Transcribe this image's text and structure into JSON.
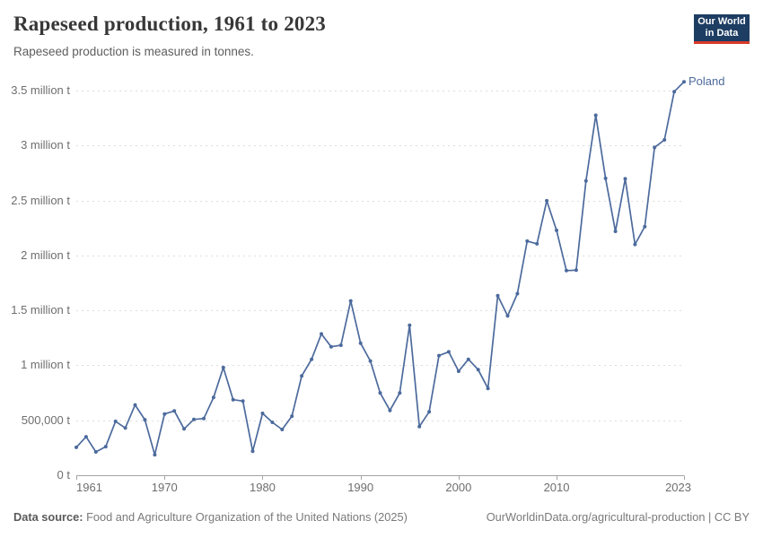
{
  "logo": {
    "line1": "Our World",
    "line2": "in Data"
  },
  "footer": {
    "source_label": "Data source:",
    "source_text": " Food and Agriculture Organization of the United Nations (2025)",
    "link_text": "OurWorldinData.org/agricultural-production | CC BY"
  },
  "colors": {
    "series_blue": "#4c6a9c",
    "gridline": "#dddddd",
    "axis": "#a3a3a3",
    "tick_text": "#6e6e6e",
    "logo_bg": "#1d3d63",
    "logo_bar": "#d93a2b"
  },
  "chart_data": {
    "type": "line",
    "title": "Rapeseed production, 1961 to 2023",
    "subtitle": "Rapeseed production is measured in tonnes.",
    "xlabel": "",
    "ylabel": "",
    "xlim": [
      1961,
      2023
    ],
    "ylim": [
      0,
      3500000
    ],
    "grid": "horizontal-dashed",
    "legend_position": "end-of-line-label",
    "x_ticks": [
      1961,
      1970,
      1980,
      1990,
      2000,
      2010,
      2023
    ],
    "y_ticks": [
      {
        "value": 0,
        "label": "0 t"
      },
      {
        "value": 500000,
        "label": "500,000 t"
      },
      {
        "value": 1000000,
        "label": "1 million t"
      },
      {
        "value": 1500000,
        "label": "1.5 million t"
      },
      {
        "value": 2000000,
        "label": "2 million t"
      },
      {
        "value": 2500000,
        "label": "2.5 million t"
      },
      {
        "value": 3000000,
        "label": "3 million t"
      },
      {
        "value": 3500000,
        "label": "3.5 million t"
      }
    ],
    "x": [
      1961,
      1962,
      1963,
      1964,
      1965,
      1966,
      1967,
      1968,
      1969,
      1970,
      1971,
      1972,
      1973,
      1974,
      1975,
      1976,
      1977,
      1978,
      1979,
      1980,
      1981,
      1982,
      1983,
      1984,
      1985,
      1986,
      1987,
      1988,
      1989,
      1990,
      1991,
      1992,
      1993,
      1994,
      1995,
      1996,
      1997,
      1998,
      1999,
      2000,
      2001,
      2002,
      2003,
      2004,
      2005,
      2006,
      2007,
      2008,
      2009,
      2010,
      2011,
      2012,
      2013,
      2014,
      2015,
      2016,
      2017,
      2018,
      2019,
      2020,
      2021,
      2022,
      2023
    ],
    "series": [
      {
        "name": "Poland",
        "color": "#4c6a9c",
        "values": [
          254000,
          350000,
          212000,
          260000,
          490000,
          430000,
          640000,
          505000,
          186000,
          557000,
          585000,
          422000,
          508000,
          516000,
          707000,
          980000,
          688000,
          675000,
          218000,
          563000,
          481000,
          416000,
          538000,
          903000,
          1055000,
          1286000,
          1169000,
          1183000,
          1586000,
          1202000,
          1039000,
          748000,
          590000,
          748000,
          1365000,
          443000,
          577000,
          1088000,
          1123000,
          946000,
          1055000,
          960000,
          790000,
          1633000,
          1450000,
          1652000,
          2130000,
          2106000,
          2497000,
          2228000,
          1862000,
          1866000,
          2678000,
          3276000,
          2701000,
          2219000,
          2697000,
          2100000,
          2262000,
          2983000,
          3051000,
          3490000,
          3580000
        ]
      }
    ]
  }
}
